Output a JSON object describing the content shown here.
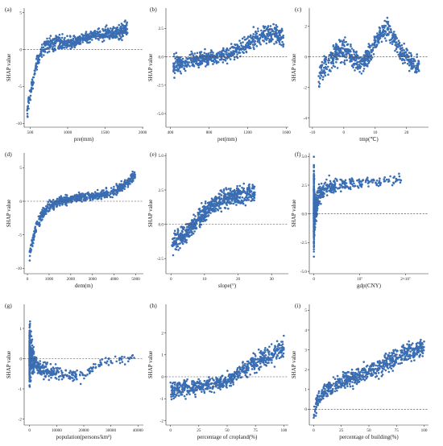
{
  "style": {
    "point_color": "#3a6db2",
    "line_color": "#444444"
  },
  "chart_data": [
    {
      "label": "(a)",
      "type": "scatter",
      "xlabel": "pre(mm)",
      "ylabel": "SHAP value",
      "xlim": [
        420,
        2010
      ],
      "ylim": [
        -10.5,
        5.6
      ],
      "xticks": [
        {
          "v": 500,
          "t": "500"
        },
        {
          "v": 1000,
          "t": "1000"
        },
        {
          "v": 1500,
          "t": "1500"
        },
        {
          "v": 2000,
          "t": "2000"
        }
      ],
      "yticks": [
        {
          "v": -10,
          "t": "-10"
        },
        {
          "v": -5,
          "t": "-5"
        },
        {
          "v": 0,
          "t": "0"
        },
        {
          "v": 5,
          "t": "5"
        }
      ],
      "ref_y": 0,
      "trend": [
        [
          460,
          -8.5
        ],
        [
          500,
          -6
        ],
        [
          560,
          -3
        ],
        [
          620,
          -1
        ],
        [
          700,
          0.3
        ],
        [
          800,
          0.8
        ],
        [
          900,
          1
        ],
        [
          1000,
          0.8
        ],
        [
          1100,
          1
        ],
        [
          1200,
          1.5
        ],
        [
          1300,
          1.8
        ],
        [
          1400,
          2
        ],
        [
          1500,
          2.2
        ],
        [
          1600,
          2.3
        ],
        [
          1700,
          2.5
        ],
        [
          1800,
          2.8
        ]
      ],
      "spread": [
        [
          460,
          1.2
        ],
        [
          700,
          1.3
        ],
        [
          1200,
          0.9
        ],
        [
          1800,
          1.4
        ]
      ]
    },
    {
      "label": "(b)",
      "type": "scatter",
      "xlabel": "pet(mm)",
      "ylabel": "SHAP value",
      "xlim": [
        355,
        1620
      ],
      "ylim": [
        -6.2,
        4.3
      ],
      "xticks": [
        {
          "v": 400,
          "t": "400"
        },
        {
          "v": 800,
          "t": "800"
        },
        {
          "v": 1200,
          "t": "1200"
        },
        {
          "v": 1600,
          "t": "1600"
        }
      ],
      "yticks": [
        {
          "v": -5,
          "t": "-5.0"
        },
        {
          "v": -2.5,
          "t": "-2.5"
        },
        {
          "v": 0,
          "t": "0.0"
        },
        {
          "v": 2.5,
          "t": "2.5"
        }
      ],
      "ref_y": 0,
      "trend": [
        [
          430,
          -0.8
        ],
        [
          520,
          -0.6
        ],
        [
          600,
          -0.4
        ],
        [
          700,
          -0.2
        ],
        [
          800,
          -0.1
        ],
        [
          900,
          0
        ],
        [
          1000,
          0.2
        ],
        [
          1100,
          0.6
        ],
        [
          1200,
          1.2
        ],
        [
          1300,
          1.8
        ],
        [
          1400,
          2.1
        ],
        [
          1500,
          2
        ],
        [
          1570,
          1.5
        ]
      ],
      "spread": [
        [
          430,
          1.2
        ],
        [
          700,
          0.7
        ],
        [
          1100,
          0.9
        ],
        [
          1570,
          1.2
        ]
      ]
    },
    {
      "label": "(c)",
      "type": "scatter",
      "xlabel": "tmp(℃)",
      "ylabel": "SHAP value",
      "xlim": [
        -11,
        27
      ],
      "ylim": [
        -4.6,
        3.2
      ],
      "xticks": [
        {
          "v": -10,
          "t": "-10"
        },
        {
          "v": 0,
          "t": "0"
        },
        {
          "v": 10,
          "t": "10"
        },
        {
          "v": 20,
          "t": "20"
        }
      ],
      "yticks": [
        {
          "v": -4,
          "t": "-4"
        },
        {
          "v": -2,
          "t": "-2"
        },
        {
          "v": 0,
          "t": "0"
        },
        {
          "v": 2,
          "t": "2"
        }
      ],
      "ref_y": 0,
      "trend": [
        [
          -8,
          -1.2
        ],
        [
          -5,
          -0.4
        ],
        [
          -2,
          0.3
        ],
        [
          0,
          0.5
        ],
        [
          2,
          0.2
        ],
        [
          4,
          -0.2
        ],
        [
          6,
          -0.4
        ],
        [
          8,
          0
        ],
        [
          10,
          1
        ],
        [
          12,
          1.6
        ],
        [
          14,
          1.8
        ],
        [
          16,
          1.2
        ],
        [
          18,
          0.4
        ],
        [
          20,
          0
        ],
        [
          22,
          -0.4
        ],
        [
          24,
          -0.6
        ]
      ],
      "spread": [
        [
          -8,
          1.1
        ],
        [
          0,
          1
        ],
        [
          12,
          0.7
        ],
        [
          24,
          0.8
        ]
      ]
    },
    {
      "label": "(d)",
      "type": "scatter",
      "xlabel": "dem(m)",
      "ylabel": "SHAP value",
      "xlim": [
        -150,
        5350
      ],
      "ylim": [
        -10.8,
        7.2
      ],
      "xticks": [
        {
          "v": 0,
          "t": "0"
        },
        {
          "v": 1000,
          "t": "1000"
        },
        {
          "v": 2000,
          "t": "2000"
        },
        {
          "v": 3000,
          "t": "3000"
        },
        {
          "v": 4000,
          "t": "4000"
        },
        {
          "v": 5000,
          "t": "5000"
        }
      ],
      "yticks": [
        {
          "v": -10,
          "t": "-10"
        },
        {
          "v": -5,
          "t": "-5"
        },
        {
          "v": 0,
          "t": "0"
        },
        {
          "v": 5,
          "t": "5"
        }
      ],
      "ref_y": 0,
      "trend": [
        [
          100,
          -8
        ],
        [
          300,
          -5
        ],
        [
          500,
          -3
        ],
        [
          800,
          -1.5
        ],
        [
          1000,
          -0.8
        ],
        [
          1500,
          0
        ],
        [
          2000,
          0.4
        ],
        [
          2500,
          0.6
        ],
        [
          3000,
          0.8
        ],
        [
          3500,
          1
        ],
        [
          4000,
          1.4
        ],
        [
          4500,
          2.5
        ],
        [
          4800,
          3.5
        ],
        [
          5000,
          4
        ]
      ],
      "spread": [
        [
          100,
          1.2
        ],
        [
          1000,
          1
        ],
        [
          3000,
          0.7
        ],
        [
          5000,
          1.1
        ]
      ]
    },
    {
      "label": "(e)",
      "type": "scatter",
      "xlabel": "slope(°)",
      "ylabel": "SHAP value",
      "xlim": [
        -1.5,
        35
      ],
      "ylim": [
        -3.6,
        5.2
      ],
      "xticks": [
        {
          "v": 0,
          "t": "0"
        },
        {
          "v": 10,
          "t": "10"
        },
        {
          "v": 20,
          "t": "20"
        },
        {
          "v": 30,
          "t": "30"
        }
      ],
      "yticks": [
        {
          "v": -2.5,
          "t": "-2.5"
        },
        {
          "v": 0,
          "t": "0.0"
        },
        {
          "v": 2.5,
          "t": "2.5"
        },
        {
          "v": 5,
          "t": "5.0"
        }
      ],
      "ref_y": 0,
      "trend": [
        [
          0.3,
          -1.5
        ],
        [
          1,
          -1.2
        ],
        [
          3,
          -1
        ],
        [
          5,
          -0.5
        ],
        [
          7,
          0
        ],
        [
          9,
          0.6
        ],
        [
          11,
          1.1
        ],
        [
          13,
          1.5
        ],
        [
          15,
          1.8
        ],
        [
          18,
          2
        ],
        [
          21,
          2.2
        ],
        [
          25,
          2.3
        ]
      ],
      "spread": [
        [
          0.3,
          1.4
        ],
        [
          5,
          0.8
        ],
        [
          12,
          0.8
        ],
        [
          25,
          1
        ]
      ]
    },
    {
      "label": "(f)",
      "type": "scatter",
      "xlabel": "gdp(CNY)",
      "ylabel": "SHAP value",
      "xlim": [
        -1000000,
        25000000
      ],
      "ylim": [
        -5.2,
        5.3
      ],
      "xticks": [
        {
          "v": 0,
          "t": "0"
        },
        {
          "v": 10000000,
          "t": "10⁷"
        },
        {
          "v": 20000000,
          "t": "2×10⁷"
        }
      ],
      "yticks": [
        {
          "v": -5,
          "t": "-5.0"
        },
        {
          "v": -2.5,
          "t": "-2.5"
        },
        {
          "v": 0,
          "t": "0.0"
        },
        {
          "v": 2.5,
          "t": "2.5"
        },
        {
          "v": 5,
          "t": "5.0"
        }
      ],
      "ref_y": 0,
      "trend": [
        [
          0,
          0.5
        ],
        [
          300000,
          0.3
        ],
        [
          1000000,
          1.5
        ],
        [
          2000000,
          2
        ],
        [
          3000000,
          2.3
        ],
        [
          10000000,
          2.7
        ],
        [
          20000000,
          3
        ]
      ],
      "spread": [
        [
          0,
          4
        ],
        [
          300000,
          1.5
        ],
        [
          2000000,
          0.9
        ],
        [
          20000000,
          0.6
        ]
      ]
    },
    {
      "label": "(g)",
      "type": "scatter",
      "xlabel": "population(persons/km²)",
      "ylabel": "SHAP value",
      "xlim": [
        -2000,
        42000
      ],
      "ylim": [
        -2.2,
        1.8
      ],
      "xticks": [
        {
          "v": 0,
          "t": "0"
        },
        {
          "v": 10000,
          "t": "10000"
        },
        {
          "v": 20000,
          "t": "20000"
        },
        {
          "v": 30000,
          "t": "30000"
        },
        {
          "v": 40000,
          "t": "40000"
        }
      ],
      "yticks": [
        {
          "v": -2,
          "t": "-2"
        },
        {
          "v": -1,
          "t": "-1"
        },
        {
          "v": 0,
          "t": "0"
        },
        {
          "v": 1,
          "t": "1"
        }
      ],
      "ref_y": 0,
      "trend": [
        [
          0,
          0.1
        ],
        [
          500,
          0.1
        ],
        [
          2000,
          -0.1
        ],
        [
          4000,
          -0.3
        ],
        [
          7000,
          -0.4
        ],
        [
          12000,
          -0.5
        ],
        [
          20000,
          -0.6
        ],
        [
          27000,
          -0.1
        ],
        [
          39000,
          0
        ]
      ],
      "spread": [
        [
          0,
          1.1
        ],
        [
          2000,
          0.4
        ],
        [
          12000,
          0.3
        ],
        [
          39000,
          0.2
        ]
      ]
    },
    {
      "label": "(h)",
      "type": "scatter",
      "xlabel": "percentage of cropland(%)",
      "ylabel": "SHAP value",
      "xlim": [
        -4,
        104
      ],
      "ylim": [
        -2.2,
        3.3
      ],
      "xticks": [
        {
          "v": 0,
          "t": "0"
        },
        {
          "v": 25,
          "t": "25"
        },
        {
          "v": 50,
          "t": "50"
        },
        {
          "v": 75,
          "t": "75"
        },
        {
          "v": 100,
          "t": "100"
        }
      ],
      "yticks": [
        {
          "v": -2,
          "t": "-2"
        },
        {
          "v": -1,
          "t": "-1"
        },
        {
          "v": 0,
          "t": "0"
        },
        {
          "v": 1,
          "t": "1"
        },
        {
          "v": 2,
          "t": "2"
        }
      ],
      "ref_y": 0,
      "trend": [
        [
          0,
          -0.6
        ],
        [
          10,
          -0.55
        ],
        [
          20,
          -0.5
        ],
        [
          30,
          -0.4
        ],
        [
          40,
          -0.3
        ],
        [
          50,
          -0.15
        ],
        [
          60,
          0.1
        ],
        [
          70,
          0.5
        ],
        [
          80,
          0.8
        ],
        [
          90,
          1
        ],
        [
          100,
          1.3
        ]
      ],
      "spread": [
        [
          0,
          0.5
        ],
        [
          50,
          0.4
        ],
        [
          100,
          0.7
        ]
      ]
    },
    {
      "label": "(i)",
      "type": "scatter",
      "xlabel": "percentage of building(%)",
      "ylabel": "SHAP value",
      "xlim": [
        -4,
        104
      ],
      "ylim": [
        -0.8,
        5.3
      ],
      "xticks": [
        {
          "v": 0,
          "t": "0"
        },
        {
          "v": 25,
          "t": "25"
        },
        {
          "v": 50,
          "t": "50"
        },
        {
          "v": 75,
          "t": "75"
        },
        {
          "v": 100,
          "t": "100"
        }
      ],
      "yticks": [
        {
          "v": 0,
          "t": "0"
        },
        {
          "v": 1,
          "t": "1"
        },
        {
          "v": 2,
          "t": "2"
        },
        {
          "v": 3,
          "t": "3"
        },
        {
          "v": 4,
          "t": "4"
        },
        {
          "v": 5,
          "t": "5"
        }
      ],
      "ref_y": 0,
      "trend": [
        [
          0,
          -0.2
        ],
        [
          3,
          0.3
        ],
        [
          8,
          0.8
        ],
        [
          15,
          1.1
        ],
        [
          25,
          1.4
        ],
        [
          40,
          1.7
        ],
        [
          55,
          2
        ],
        [
          70,
          2.5
        ],
        [
          85,
          2.9
        ],
        [
          100,
          3.1
        ]
      ],
      "spread": [
        [
          0,
          0.5
        ],
        [
          25,
          0.5
        ],
        [
          60,
          0.6
        ],
        [
          100,
          0.6
        ]
      ]
    }
  ]
}
